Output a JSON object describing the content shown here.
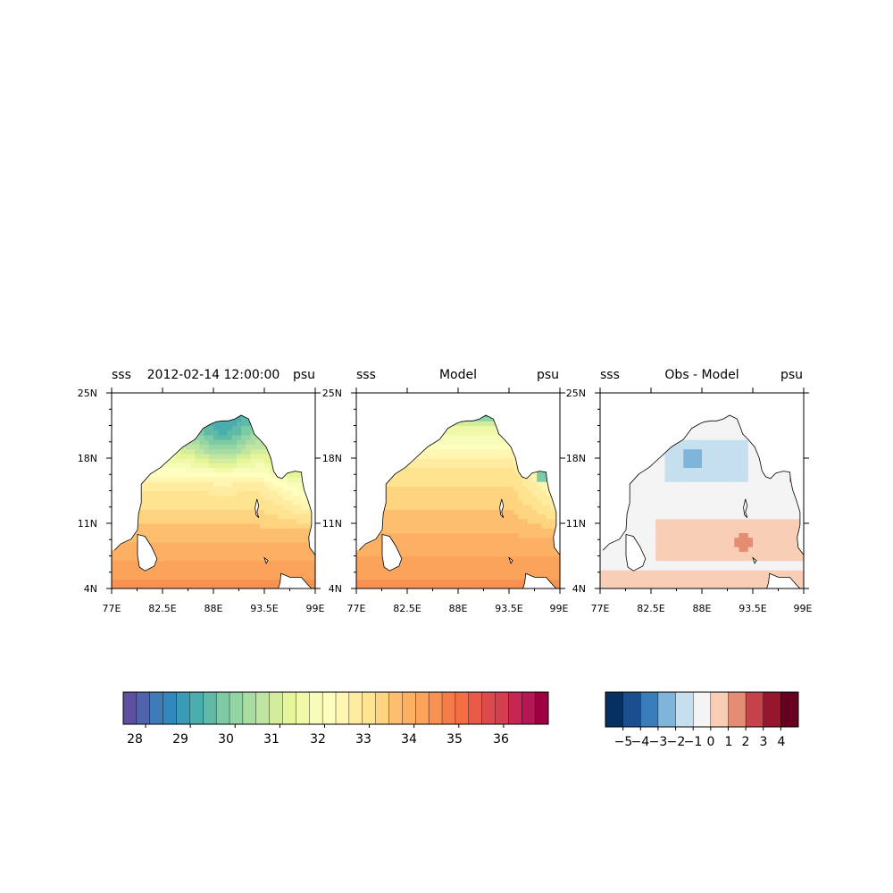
{
  "chart_data": [
    {
      "type": "heatmap",
      "title_left": "sss",
      "title_center": "2012-02-14 12:00:00",
      "title_right": "psu",
      "x_ticks": [
        "77E",
        "82.5E",
        "88E",
        "93.5E",
        "99E"
      ],
      "y_ticks": [
        "25N",
        "18N",
        "11N",
        "4N"
      ],
      "xlim": [
        77,
        99
      ],
      "ylim": [
        4,
        25
      ],
      "colorbar": "sss"
    },
    {
      "type": "heatmap",
      "title_left": "sss",
      "title_center": "Model",
      "title_right": "psu",
      "x_ticks": [
        "77E",
        "82.5E",
        "88E",
        "93.5E",
        "99E"
      ],
      "y_ticks": [
        "25N",
        "18N",
        "11N",
        "4N"
      ],
      "xlim": [
        77,
        99
      ],
      "ylim": [
        4,
        25
      ],
      "colorbar": "sss"
    },
    {
      "type": "heatmap",
      "title_left": "sss",
      "title_center": "Obs - Model",
      "title_right": "psu",
      "x_ticks": [
        "77E",
        "82.5E",
        "88E",
        "93.5E",
        "99E"
      ],
      "y_ticks": [
        "25N",
        "18N",
        "11N",
        "4N"
      ],
      "xlim": [
        77,
        99
      ],
      "ylim": [
        4,
        25
      ],
      "colorbar": "diff"
    }
  ],
  "colorbars": {
    "sss": {
      "range": [
        27.5,
        37.0
      ],
      "step": 0.25,
      "tick_labels": [
        "28",
        "29",
        "30",
        "31",
        "32",
        "33",
        "34",
        "35",
        "36"
      ],
      "tick_values": [
        28,
        29,
        30,
        31,
        32,
        33,
        34,
        35,
        36
      ],
      "colors": [
        "#5e4fa2",
        "#4f64ad",
        "#3f7bb7",
        "#3288bd",
        "#3a9bb7",
        "#4aaeae",
        "#5fbaa8",
        "#7ccba5",
        "#92d4a4",
        "#a9dda2",
        "#bfe5a0",
        "#d3ed9c",
        "#e6f598",
        "#f0f9a8",
        "#f7fcb9",
        "#ffffbf",
        "#fff6b2",
        "#ffeca0",
        "#fee391",
        "#fed480",
        "#fdbf6f",
        "#fdb064",
        "#fca35b",
        "#f99153",
        "#f67b4a",
        "#f46d43",
        "#e85b46",
        "#dc4a4c",
        "#d53e4f",
        "#c82652",
        "#b51752",
        "#9e0142"
      ]
    },
    "diff": {
      "tick_labels": [
        "−5",
        "−4",
        "−3",
        "−2",
        "−1",
        "0",
        "1",
        "2",
        "3",
        "4"
      ],
      "tick_values": [
        -5,
        -4,
        -3,
        -2,
        -1,
        0,
        1,
        2,
        3,
        4
      ],
      "colors": [
        "#053061",
        "#1a4f8f",
        "#3a7dbb",
        "#7fb5d8",
        "#c6dfee",
        "#f4f4f4",
        "#f9ceb6",
        "#e48d72",
        "#c6424b",
        "#98162d",
        "#67001f"
      ]
    }
  },
  "colors": {
    "land": "#ffffff",
    "coast": "#000000"
  }
}
